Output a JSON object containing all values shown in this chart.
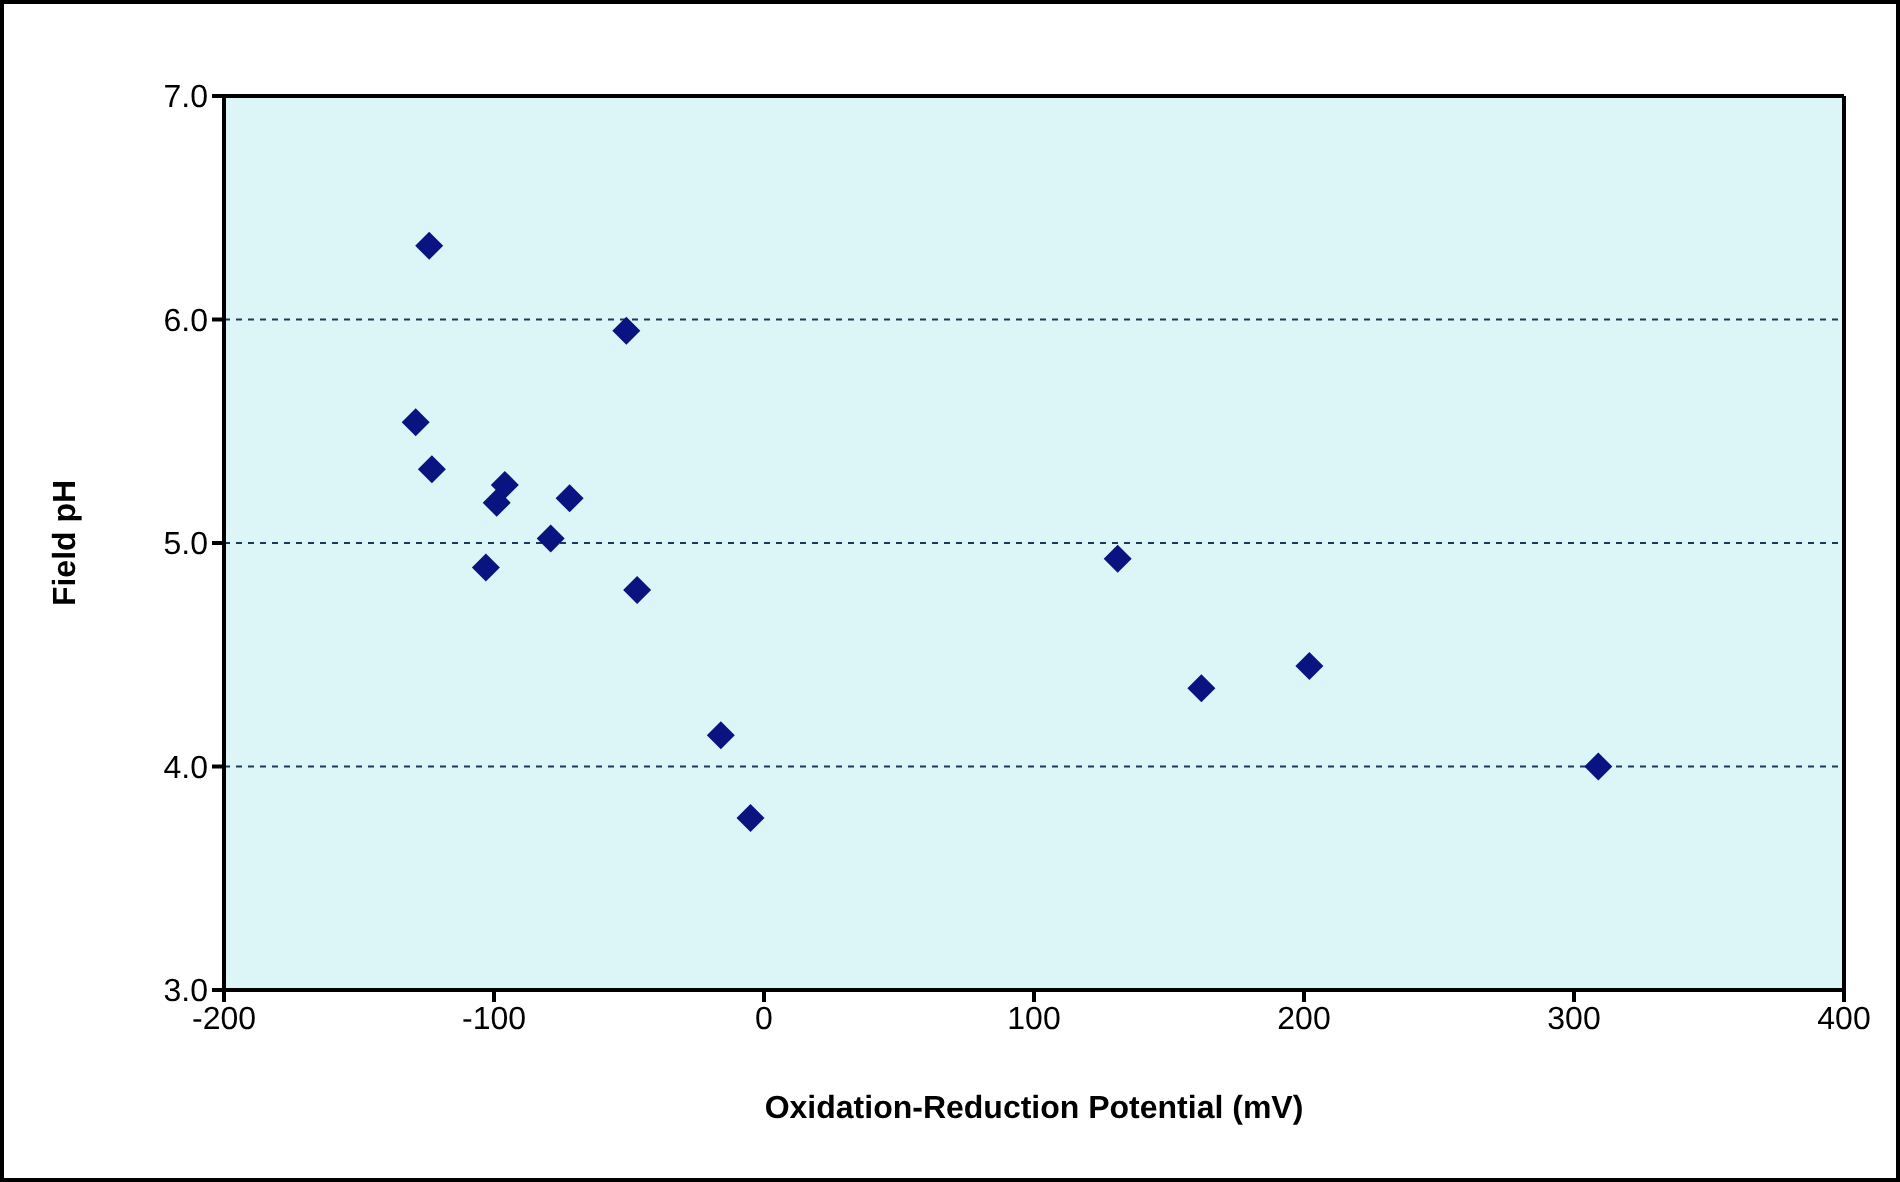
{
  "chart_data": {
    "type": "scatter",
    "xlabel": "Oxidation-Reduction Potential (mV)",
    "ylabel": "Field pH",
    "x": [
      -124,
      -51,
      -129,
      -123,
      -96,
      -99,
      -72,
      -79,
      -103,
      -47,
      -16,
      -5,
      131,
      162,
      202,
      309
    ],
    "values": [
      6.33,
      5.95,
      5.54,
      5.33,
      5.26,
      5.18,
      5.2,
      5.02,
      4.89,
      4.79,
      4.14,
      3.77,
      4.93,
      4.35,
      4.45,
      4.0
    ],
    "color": "#0a1480",
    "xlim": [
      -200,
      400
    ],
    "xticks": [
      -200,
      -100,
      0,
      100,
      200,
      300,
      400
    ],
    "ylim": [
      3,
      7
    ],
    "yticks": [
      {
        "value": 3,
        "label": "3.0"
      },
      {
        "value": 4,
        "label": "4.0"
      },
      {
        "value": 5,
        "label": "5.0"
      },
      {
        "value": 6,
        "label": "6.0"
      },
      {
        "value": 7,
        "label": "7.0"
      }
    ],
    "grid": "y",
    "marker": "diamond",
    "legend": false
  }
}
